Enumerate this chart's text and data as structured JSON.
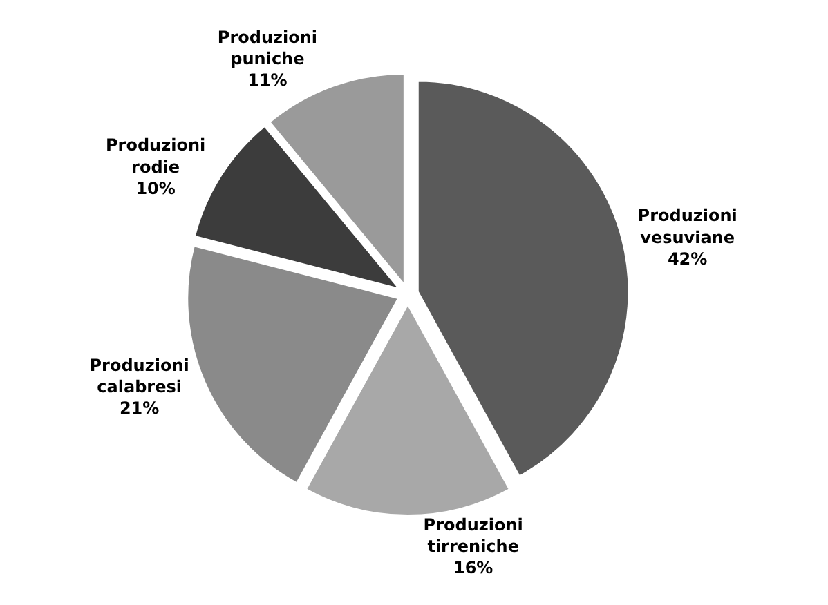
{
  "chart_data": {
    "type": "pie",
    "categories": [
      "Produzioni vesuviane",
      "Produzioni tirreniche",
      "Produzioni calabresi",
      "Produzioni rodie",
      "Produzioni puniche"
    ],
    "values": [
      42,
      16,
      21,
      10,
      11
    ],
    "value_labels": [
      "42%",
      "16%",
      "21%",
      "10%",
      "11%"
    ],
    "colors": [
      "#5a5a5a",
      "#a8a8a8",
      "#8a8a8a",
      "#3c3c3c",
      "#9a9a9a"
    ],
    "legend": false
  }
}
